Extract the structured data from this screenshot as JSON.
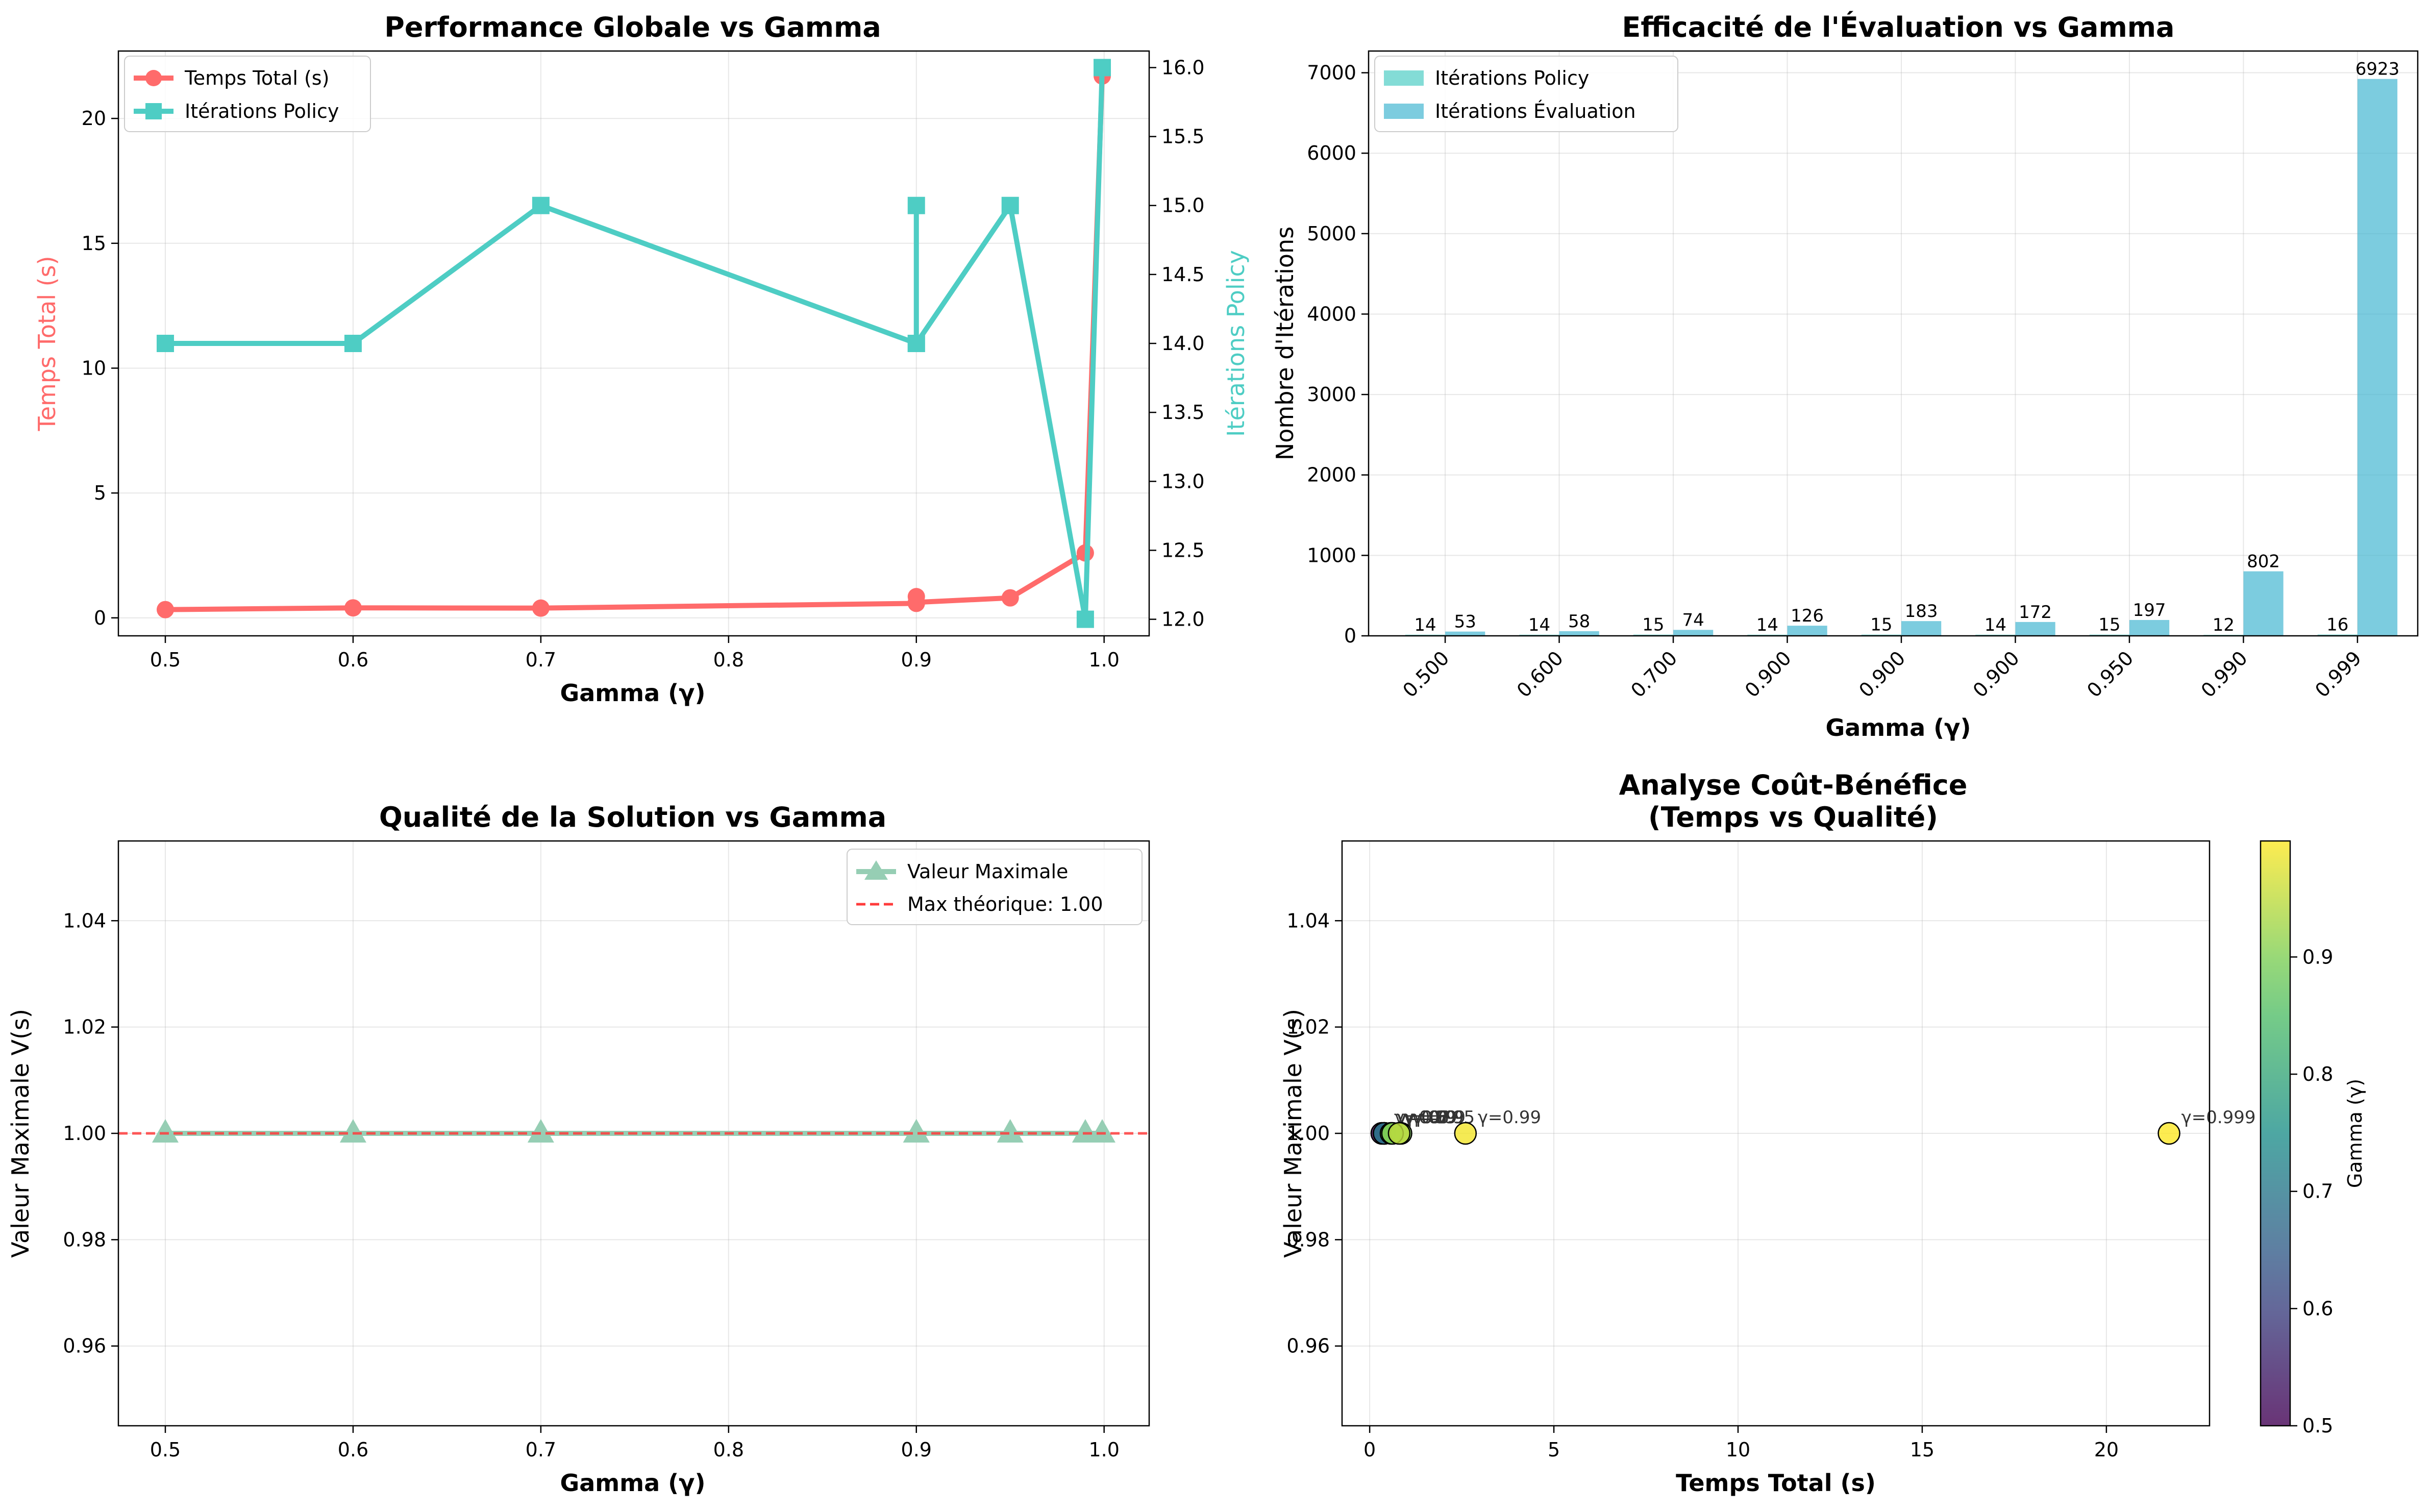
{
  "chart_data": [
    {
      "type": "line",
      "title": "Performance Globale vs Gamma",
      "xlabel": "Gamma (γ)",
      "ylabel": "Temps Total (s)",
      "ylabel_right": "Itérations Policy",
      "xlim": [
        0.475,
        1.024
      ],
      "ylim": [
        -0.72,
        22.7
      ],
      "ylim_right": [
        11.88,
        16.12
      ],
      "x_ticks": [
        "0.5",
        "0.6",
        "0.7",
        "0.8",
        "0.9",
        "1.0"
      ],
      "y_ticks": [
        "0",
        "5",
        "10",
        "15",
        "20"
      ],
      "y_ticks_right": [
        "12.0",
        "12.5",
        "13.0",
        "13.5",
        "14.0",
        "14.5",
        "15.0",
        "15.5",
        "16.0"
      ],
      "grid": true,
      "legend": "upper left",
      "series": [
        {
          "name": "Temps Total (s)",
          "axis": "left",
          "color": "#FF6B6B",
          "marker": "circle",
          "x": [
            0.5,
            0.6,
            0.7,
            0.9,
            0.9,
            0.9,
            0.95,
            0.99,
            0.999
          ],
          "y": [
            0.33,
            0.4,
            0.39,
            0.58,
            0.85,
            0.62,
            0.8,
            2.6,
            21.7
          ]
        },
        {
          "name": "Itérations Policy",
          "axis": "right",
          "color": "#4ECDC4",
          "marker": "square",
          "x": [
            0.5,
            0.6,
            0.7,
            0.9,
            0.9,
            0.9,
            0.95,
            0.99,
            0.999
          ],
          "y": [
            14,
            14,
            15,
            14,
            15,
            14,
            15,
            12,
            16
          ]
        }
      ]
    },
    {
      "type": "bar",
      "title": "Efficacité de l'Évaluation vs Gamma",
      "xlabel": "Gamma (γ)",
      "ylabel": "Nombre d'Itérations",
      "categories": [
        "0.500",
        "0.600",
        "0.700",
        "0.900",
        "0.900",
        "0.900",
        "0.950",
        "0.990",
        "0.999"
      ],
      "ylim": [
        0,
        7270
      ],
      "y_ticks": [
        "0",
        "1000",
        "2000",
        "3000",
        "4000",
        "5000",
        "6000",
        "7000"
      ],
      "grid": true,
      "legend": "upper left",
      "series": [
        {
          "name": "Itérations Policy",
          "color": "#4ECDC4",
          "values": [
            14,
            14,
            15,
            14,
            15,
            14,
            15,
            12,
            16
          ]
        },
        {
          "name": "Itérations Évaluation",
          "color": "#45B7D1",
          "values": [
            53,
            58,
            74,
            126,
            183,
            172,
            197,
            802,
            6923
          ]
        }
      ]
    },
    {
      "type": "line",
      "title": "Qualité de la Solution vs Gamma",
      "xlabel": "Gamma (γ)",
      "ylabel": "Valeur Maximale V(s)",
      "xlim": [
        0.475,
        1.024
      ],
      "ylim": [
        0.945,
        1.055
      ],
      "x_ticks": [
        "0.5",
        "0.6",
        "0.7",
        "0.8",
        "0.9",
        "1.0"
      ],
      "y_ticks": [
        "0.96",
        "0.98",
        "1.00",
        "1.02",
        "1.04"
      ],
      "grid": true,
      "legend": "upper right",
      "series": [
        {
          "name": "Valeur Maximale",
          "color": "#96CEB4",
          "marker": "triangle",
          "x": [
            0.5,
            0.6,
            0.7,
            0.9,
            0.9,
            0.9,
            0.95,
            0.99,
            0.999
          ],
          "y": [
            1,
            1,
            1,
            1,
            1,
            1,
            1,
            1,
            1
          ]
        }
      ],
      "reference_line": {
        "label": "Max théorique: 1.00",
        "y": 1.0,
        "color": "#FF3B3B",
        "style": "dashed"
      }
    },
    {
      "type": "scatter",
      "title": "Analyse Coût-Bénéfice",
      "subtitle": "(Temps vs Qualité)",
      "xlabel": "Temps Total (s)",
      "ylabel": "Valeur Maximale V(s)",
      "xlim": [
        -0.75,
        22.8
      ],
      "ylim": [
        0.945,
        1.055
      ],
      "x_ticks": [
        "0",
        "5",
        "10",
        "15",
        "20"
      ],
      "y_ticks": [
        "0.96",
        "0.98",
        "1.00",
        "1.02",
        "1.04"
      ],
      "grid": true,
      "points": [
        {
          "x": 0.33,
          "y": 1.0,
          "gamma": 0.5,
          "label": "γ=0.5"
        },
        {
          "x": 0.4,
          "y": 1.0,
          "gamma": 0.6,
          "label": "γ=0.6"
        },
        {
          "x": 0.39,
          "y": 1.0,
          "gamma": 0.7,
          "label": "γ=0.7"
        },
        {
          "x": 0.58,
          "y": 1.0,
          "gamma": 0.9,
          "label": "γ=0.9"
        },
        {
          "x": 0.85,
          "y": 1.0,
          "gamma": 0.9,
          "label": "γ=0.9"
        },
        {
          "x": 0.62,
          "y": 1.0,
          "gamma": 0.9,
          "label": "γ=0.9"
        },
        {
          "x": 0.8,
          "y": 1.0,
          "gamma": 0.95,
          "label": "γ=0.95"
        },
        {
          "x": 2.6,
          "y": 1.0,
          "gamma": 0.99,
          "label": "γ=0.99"
        },
        {
          "x": 21.7,
          "y": 1.0,
          "gamma": 0.999,
          "label": "γ=0.999"
        }
      ],
      "colorbar": {
        "label": "Gamma (γ)",
        "range": [
          0.5,
          0.999
        ],
        "ticks": [
          "0.5",
          "0.6",
          "0.7",
          "0.8",
          "0.9"
        ],
        "colormap": "viridis"
      }
    }
  ]
}
